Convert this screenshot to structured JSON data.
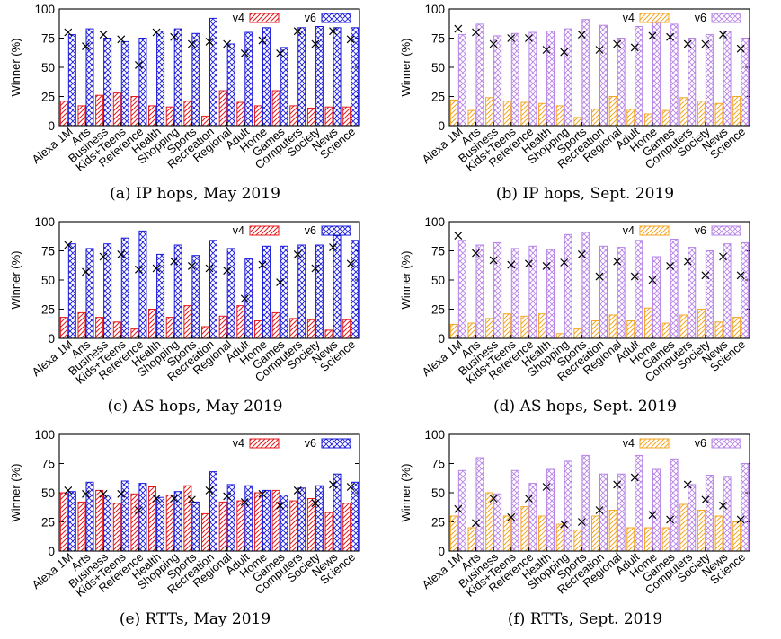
{
  "figure": {
    "colors": {
      "v4_may": "#e41a1c",
      "v6_may": "#1a1adc",
      "v4_sept": "#f5a623",
      "v6_sept": "#b784e8",
      "marker": "#000000"
    }
  },
  "chart_data": [
    {
      "id": "a",
      "type": "bar",
      "caption": "(a) IP hops, May 2019",
      "ylabel": "Winner (%)",
      "ylim": [
        0,
        100
      ],
      "yticks": [
        0,
        25,
        50,
        75,
        100
      ],
      "legend_position": "top-right",
      "categories": [
        "Alexa 1M",
        "Arts",
        "Business",
        "Kids+Teens",
        "Reference",
        "Health",
        "Shopping",
        "Sports",
        "Recreation",
        "Regional",
        "Adult",
        "Home",
        "Games",
        "Computers",
        "Society",
        "News",
        "Science"
      ],
      "series": [
        {
          "name": "v4",
          "pattern": "diagonal",
          "color_key": "v4_may",
          "values": [
            21,
            17,
            26,
            28,
            25,
            17,
            16,
            21,
            8,
            30,
            20,
            17,
            30,
            17,
            15,
            16,
            16
          ]
        },
        {
          "name": "v6",
          "pattern": "crosshatch",
          "color_key": "v6_may",
          "values": [
            78,
            83,
            75,
            72,
            75,
            81,
            83,
            79,
            92,
            70,
            80,
            84,
            67,
            84,
            85,
            84,
            84
          ]
        }
      ],
      "markers": [
        80,
        68,
        78,
        74,
        52,
        80,
        76,
        70,
        72,
        70,
        62,
        73,
        62,
        81,
        70,
        81,
        74
      ]
    },
    {
      "id": "b",
      "type": "bar",
      "caption": "(b) IP hops, Sept. 2019",
      "ylabel": "Winner (%)",
      "ylim": [
        0,
        100
      ],
      "yticks": [
        0,
        25,
        50,
        75,
        100
      ],
      "legend_position": "top-right",
      "categories": [
        "Alexa 1M",
        "Arts",
        "Business",
        "Kids+Teens",
        "Reference",
        "Health",
        "Shopping",
        "Sports",
        "Recreation",
        "Regional",
        "Adult",
        "Home",
        "Games",
        "Computers",
        "Society",
        "News",
        "Science"
      ],
      "series": [
        {
          "name": "v4",
          "pattern": "diagonal",
          "color_key": "v4_sept",
          "values": [
            22,
            13,
            24,
            21,
            20,
            19,
            17,
            7,
            14,
            25,
            14,
            10,
            13,
            24,
            21,
            19,
            25
          ]
        },
        {
          "name": "v6",
          "pattern": "crosshatch",
          "color_key": "v6_sept",
          "values": [
            78,
            87,
            77,
            79,
            80,
            81,
            83,
            91,
            86,
            75,
            85,
            89,
            87,
            75,
            78,
            81,
            75
          ]
        }
      ],
      "markers": [
        83,
        80,
        70,
        75,
        75,
        65,
        63,
        78,
        65,
        70,
        67,
        77,
        76,
        70,
        70,
        78,
        66
      ]
    },
    {
      "id": "c",
      "type": "bar",
      "caption": "(c) AS hops, May 2019",
      "ylabel": "Winner (%)",
      "ylim": [
        0,
        100
      ],
      "yticks": [
        0,
        25,
        50,
        75,
        100
      ],
      "legend_position": "top-right",
      "categories": [
        "Alexa 1M",
        "Arts",
        "Business",
        "Kids+Teens",
        "Reference",
        "Health",
        "Shopping",
        "Sports",
        "Recreation",
        "Regional",
        "Adult",
        "Home",
        "Games",
        "Computers",
        "Society",
        "News",
        "Science"
      ],
      "series": [
        {
          "name": "v4",
          "pattern": "diagonal",
          "color_key": "v4_may",
          "values": [
            18,
            22,
            18,
            14,
            8,
            25,
            18,
            28,
            10,
            19,
            28,
            15,
            22,
            17,
            16,
            7,
            16
          ]
        },
        {
          "name": "v6",
          "pattern": "crosshatch",
          "color_key": "v6_may",
          "values": [
            81,
            77,
            81,
            86,
            92,
            72,
            80,
            71,
            84,
            77,
            68,
            79,
            79,
            80,
            80,
            88,
            84
          ]
        }
      ],
      "markers": [
        80,
        57,
        70,
        72,
        59,
        60,
        66,
        62,
        60,
        58,
        34,
        63,
        48,
        72,
        60,
        78,
        64
      ]
    },
    {
      "id": "d",
      "type": "bar",
      "caption": "(d) AS hops, Sept. 2019",
      "ylabel": "Winner (%)",
      "ylim": [
        0,
        100
      ],
      "yticks": [
        0,
        25,
        50,
        75,
        100
      ],
      "legend_position": "top-right",
      "categories": [
        "Alexa 1M",
        "Arts",
        "Business",
        "Kids+Teens",
        "Reference",
        "Health",
        "Shopping",
        "Sports",
        "Recreation",
        "Regional",
        "Adult",
        "Home",
        "Games",
        "Computers",
        "Society",
        "News",
        "Science"
      ],
      "series": [
        {
          "name": "v4",
          "pattern": "diagonal",
          "color_key": "v4_sept",
          "values": [
            12,
            13,
            17,
            21,
            19,
            21,
            4,
            8,
            15,
            20,
            15,
            26,
            13,
            20,
            25,
            14,
            18
          ]
        },
        {
          "name": "v6",
          "pattern": "crosshatch",
          "color_key": "v6_sept",
          "values": [
            84,
            80,
            82,
            77,
            79,
            76,
            89,
            91,
            79,
            78,
            84,
            70,
            85,
            78,
            75,
            81,
            82
          ]
        }
      ],
      "markers": [
        88,
        73,
        67,
        63,
        64,
        62,
        65,
        72,
        53,
        66,
        53,
        50,
        62,
        66,
        54,
        70,
        54
      ]
    },
    {
      "id": "e",
      "type": "bar",
      "caption": "(e) RTTs, May 2019",
      "ylabel": "Winner (%)",
      "ylim": [
        0,
        100
      ],
      "yticks": [
        0,
        25,
        50,
        75,
        100
      ],
      "legend_position": "top-right",
      "categories": [
        "Alexa 1M",
        "Arts",
        "Business",
        "Kids+Teens",
        "Reference",
        "Health",
        "Shopping",
        "Sports",
        "Recreation",
        "Regional",
        "Adult",
        "Home",
        "Games",
        "Computers",
        "Society",
        "News",
        "Science"
      ],
      "series": [
        {
          "name": "v4",
          "pattern": "diagonal",
          "color_key": "v4_may",
          "values": [
            50,
            42,
            52,
            41,
            49,
            55,
            48,
            56,
            32,
            42,
            43,
            50,
            52,
            43,
            45,
            33,
            41
          ]
        },
        {
          "name": "v6",
          "pattern": "crosshatch",
          "color_key": "v6_may",
          "values": [
            51,
            59,
            48,
            60,
            58,
            46,
            51,
            42,
            68,
            57,
            56,
            52,
            48,
            54,
            56,
            66,
            59
          ]
        }
      ],
      "markers": [
        52,
        49,
        49,
        49,
        35,
        45,
        45,
        44,
        52,
        47,
        42,
        49,
        39,
        52,
        41,
        57,
        55
      ]
    },
    {
      "id": "f",
      "type": "bar",
      "caption": "(f) RTTs, Sept. 2019",
      "ylabel": "Winner (%)",
      "ylim": [
        0,
        100
      ],
      "yticks": [
        0,
        25,
        50,
        75,
        100
      ],
      "legend_position": "top-right",
      "categories": [
        "Alexa 1M",
        "Arts",
        "Business",
        "Kids+Teens",
        "Reference",
        "Health",
        "Shopping",
        "Sports",
        "Recreation",
        "Regional",
        "Adult",
        "Home",
        "Games",
        "Computers",
        "Society",
        "News",
        "Science"
      ],
      "series": [
        {
          "name": "v4",
          "pattern": "diagonal",
          "color_key": "v4_sept",
          "values": [
            30,
            20,
            50,
            30,
            38,
            30,
            23,
            18,
            30,
            35,
            20,
            20,
            20,
            40,
            35,
            30,
            25
          ]
        },
        {
          "name": "v6",
          "pattern": "crosshatch",
          "color_key": "v6_sept",
          "values": [
            69,
            80,
            49,
            69,
            58,
            70,
            77,
            82,
            66,
            66,
            82,
            70,
            79,
            57,
            65,
            64,
            75
          ]
        }
      ],
      "markers": [
        36,
        24,
        45,
        29,
        45,
        55,
        23,
        25,
        35,
        57,
        63,
        31,
        27,
        57,
        44,
        39,
        27
      ]
    }
  ]
}
